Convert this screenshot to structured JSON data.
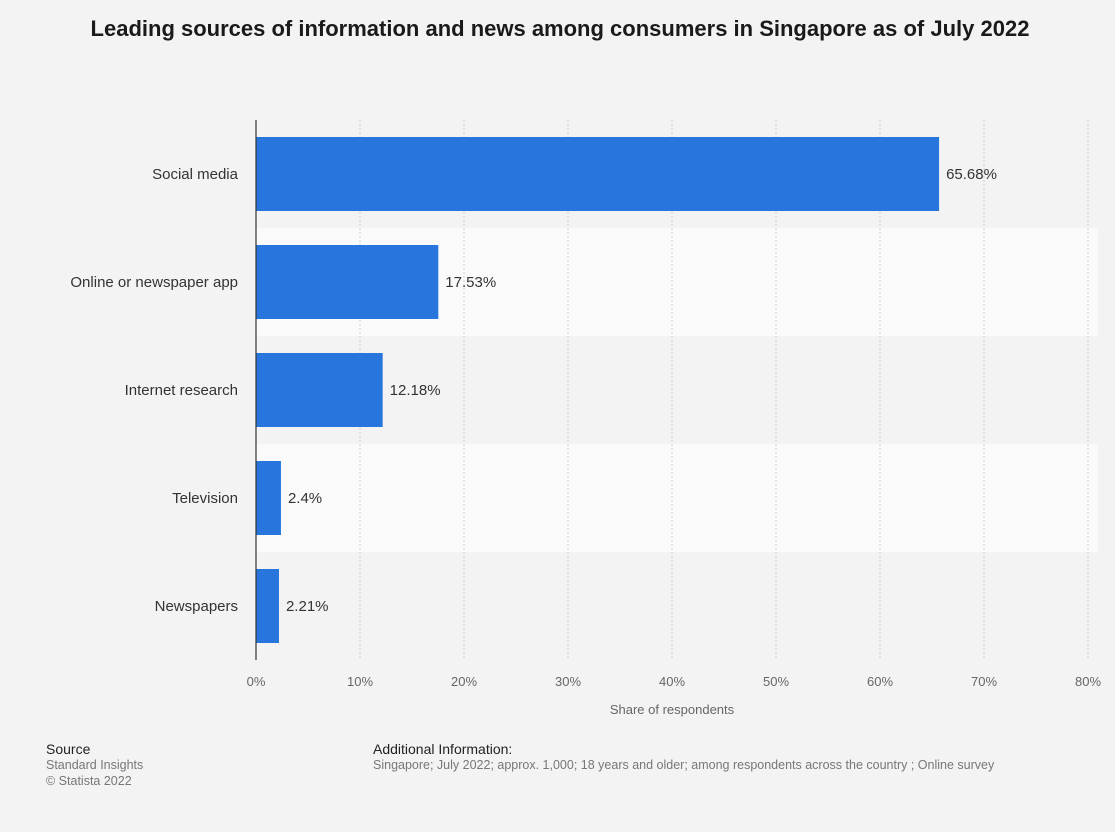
{
  "chart_data": {
    "type": "bar",
    "orientation": "horizontal",
    "title": "Leading sources of information and news among consumers in Singapore as of July 2022",
    "categories": [
      "Social media",
      "Online or newspaper app",
      "Internet research",
      "Television",
      "Newspapers"
    ],
    "values": [
      65.68,
      17.53,
      12.18,
      2.4,
      2.21
    ],
    "value_labels": [
      "65.68%",
      "17.53%",
      "12.18%",
      "2.4%",
      "2.21%"
    ],
    "xlabel": "Share of respondents",
    "ylabel": "",
    "xlim": [
      0,
      80
    ],
    "ticks": [
      0,
      10,
      20,
      30,
      40,
      50,
      60,
      70,
      80
    ],
    "tick_labels": [
      "0%",
      "10%",
      "20%",
      "30%",
      "40%",
      "50%",
      "60%",
      "70%",
      "80%"
    ],
    "grid": true,
    "bar_color": "#2876dd"
  },
  "source": {
    "heading": "Source",
    "lines": [
      "Standard Insights",
      "© Statista 2022"
    ]
  },
  "additional_info": {
    "heading": "Additional Information:",
    "text": "Singapore; July 2022; approx. 1,000; 18 years and older; among respondents across the country ; Online survey"
  }
}
